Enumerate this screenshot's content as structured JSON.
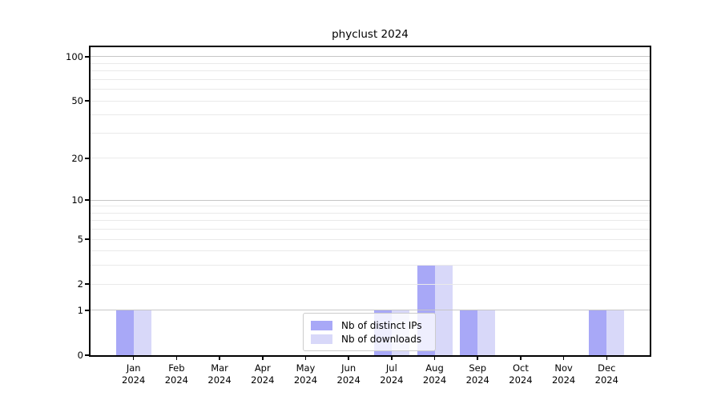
{
  "title": "phyclust 2024",
  "chart_data": {
    "type": "bar",
    "title": "phyclust 2024",
    "categories": [
      "Jan 2024",
      "Feb 2024",
      "Mar 2024",
      "Apr 2024",
      "May 2024",
      "Jun 2024",
      "Jul 2024",
      "Aug 2024",
      "Sep 2024",
      "Oct 2024",
      "Nov 2024",
      "Dec 2024"
    ],
    "series": [
      {
        "name": "Nb of distinct IPs",
        "color": "#a8a8f7",
        "values": [
          1,
          0,
          0,
          0,
          0,
          0,
          1,
          3,
          1,
          0,
          0,
          1
        ]
      },
      {
        "name": "Nb of downloads",
        "color": "#d8d8f9",
        "values": [
          1,
          0,
          0,
          0,
          0,
          0,
          1,
          3,
          1,
          0,
          0,
          1
        ]
      }
    ],
    "xlabel": "",
    "ylabel": "",
    "yscale": "log1p",
    "ylim": [
      0,
      116
    ],
    "y_labeled_ticks": [
      0,
      1,
      2,
      5,
      10,
      20,
      50,
      100
    ],
    "y_decade_gridlines": [
      1,
      10,
      100
    ],
    "y_minor_gridlines": [
      2,
      3,
      4,
      5,
      6,
      7,
      8,
      9,
      20,
      30,
      40,
      50,
      60,
      70,
      80,
      90
    ],
    "grid": true,
    "legend_position": "lower center"
  },
  "colors": {
    "spine": "#000000",
    "decade_grid": "#c6c6c6",
    "minor_grid": "#eaeaea",
    "legend_border": "#cccccc",
    "background": "#ffffff"
  }
}
